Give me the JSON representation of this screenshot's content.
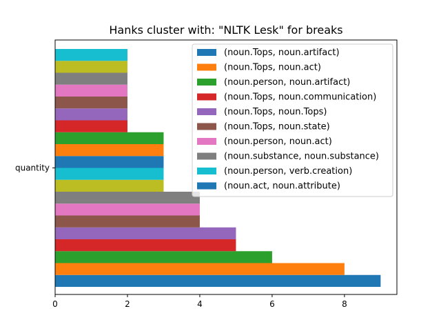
{
  "chart_data": {
    "type": "bar",
    "orientation": "horizontal",
    "title": "Hanks cluster with: \"NLTK Lesk\" for breaks",
    "xlabel": "",
    "ylabel": "",
    "y_categories": [
      "quantity"
    ],
    "xlim": [
      0,
      9.45
    ],
    "x_ticks": [
      0,
      2,
      4,
      6,
      8
    ],
    "grid": false,
    "legend_position": "top-right",
    "bars": [
      {
        "value": 9,
        "color": "#1f77b4"
      },
      {
        "value": 8,
        "color": "#ff7f0e"
      },
      {
        "value": 6,
        "color": "#2ca02c"
      },
      {
        "value": 5,
        "color": "#d62728"
      },
      {
        "value": 5,
        "color": "#9467bd"
      },
      {
        "value": 4,
        "color": "#8c564b"
      },
      {
        "value": 4,
        "color": "#e377c2"
      },
      {
        "value": 4,
        "color": "#7f7f7f"
      },
      {
        "value": 3,
        "color": "#bcbd22"
      },
      {
        "value": 3,
        "color": "#17becf"
      },
      {
        "value": 3,
        "color": "#1f77b4"
      },
      {
        "value": 3,
        "color": "#ff7f0e"
      },
      {
        "value": 3,
        "color": "#2ca02c"
      },
      {
        "value": 2,
        "color": "#d62728"
      },
      {
        "value": 2,
        "color": "#9467bd"
      },
      {
        "value": 2,
        "color": "#8c564b"
      },
      {
        "value": 2,
        "color": "#e377c2"
      },
      {
        "value": 2,
        "color": "#7f7f7f"
      },
      {
        "value": 2,
        "color": "#bcbd22"
      },
      {
        "value": 2,
        "color": "#17becf"
      }
    ],
    "legend": [
      {
        "label": "(noun.Tops, noun.artifact)",
        "color": "#1f77b4"
      },
      {
        "label": "(noun.Tops, noun.act)",
        "color": "#ff7f0e"
      },
      {
        "label": "(noun.person, noun.artifact)",
        "color": "#2ca02c"
      },
      {
        "label": "(noun.Tops, noun.communication)",
        "color": "#d62728"
      },
      {
        "label": "(noun.Tops, noun.Tops)",
        "color": "#9467bd"
      },
      {
        "label": "(noun.Tops, noun.state)",
        "color": "#8c564b"
      },
      {
        "label": "(noun.person, noun.act)",
        "color": "#e377c2"
      },
      {
        "label": "(noun.substance, noun.substance)",
        "color": "#7f7f7f"
      },
      {
        "label": "(noun.person, verb.creation)",
        "color": "#17becf"
      },
      {
        "label": "(noun.act, noun.attribute)",
        "color": "#1f77b4"
      }
    ]
  }
}
